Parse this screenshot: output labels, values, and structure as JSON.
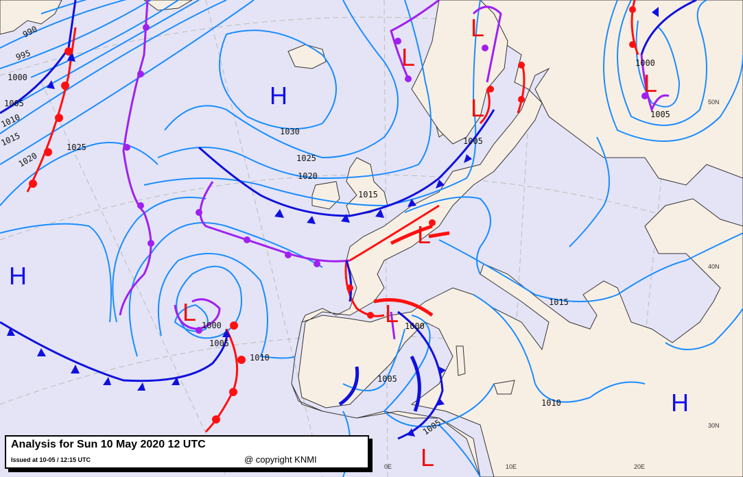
{
  "title_box": {
    "title": "Analysis for Sun 10 May 2020 12 UTC",
    "issued": "Issued at 10-05 / 12:15 UTC",
    "copyright": "@ copyright KNMI"
  },
  "colors": {
    "sea": "#e4e4f6",
    "land": "#f8efe4",
    "isobar": "#1a8cff",
    "cold_front": "#1010dd",
    "warm_front": "#ff1010",
    "occluded_front": "#a020f0",
    "high": "#1010ee",
    "low": "#ee1010"
  },
  "pressure_centers": [
    {
      "type": "H",
      "label": "H"
    },
    {
      "type": "H",
      "label": "H"
    },
    {
      "type": "H",
      "label": "H"
    },
    {
      "type": "L",
      "label": "L"
    },
    {
      "type": "L",
      "label": "L"
    },
    {
      "type": "L",
      "label": "L"
    },
    {
      "type": "L",
      "label": "L"
    },
    {
      "type": "L",
      "label": "L"
    },
    {
      "type": "L",
      "label": "L"
    },
    {
      "type": "L",
      "label": "L"
    },
    {
      "type": "L",
      "label": "L"
    }
  ],
  "isobar_labels": [
    "990",
    "995",
    "1000",
    "1005",
    "1010",
    "1015",
    "1020",
    "1025",
    "1030",
    "1025",
    "1020",
    "1015",
    "1005",
    "1000",
    "1005",
    "1000",
    "1005",
    "1010",
    "1000",
    "1005",
    "1010",
    "1015",
    "1005"
  ],
  "grid_labels": {
    "lat": [
      "50N",
      "40N",
      "30N"
    ],
    "lon": [
      "0E",
      "10E",
      "20E"
    ]
  }
}
